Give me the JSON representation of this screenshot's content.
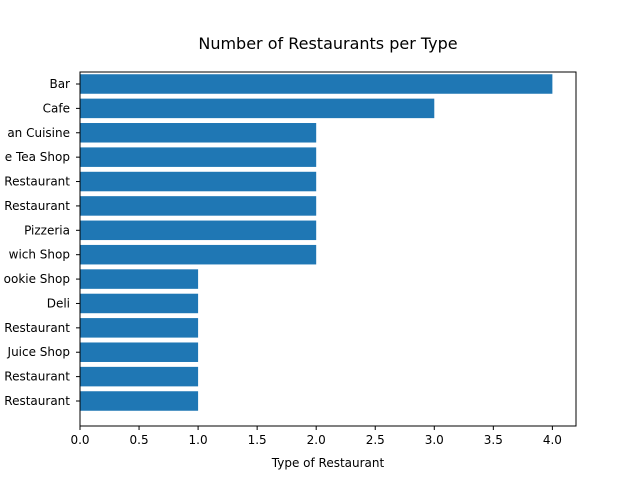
{
  "chart_data": {
    "type": "bar",
    "orientation": "horizontal",
    "title": "Number of Restaurants per Type",
    "xlabel": "Type of Restaurant",
    "ylabel": "",
    "categories": [
      "Bar",
      "Cafe",
      "an Cuisine ",
      "e Tea Shop",
      "Restaurant",
      "Restaurant",
      "Pizzeria",
      "wich Shop",
      "ookie Shop",
      "Deli",
      "Restaurant",
      "Juice Shop",
      "Restaurant",
      "Restaurant"
    ],
    "values": [
      4,
      3,
      2,
      2,
      2,
      2,
      2,
      2,
      1,
      1,
      1,
      1,
      1,
      1
    ],
    "xlim": [
      0,
      4.2
    ],
    "xticks": [
      "0.0",
      "0.5",
      "1.0",
      "1.5",
      "2.0",
      "2.5",
      "3.0",
      "3.5",
      "4.0"
    ],
    "bar_color": "#1f77b4",
    "grid": false,
    "legend": "none"
  }
}
